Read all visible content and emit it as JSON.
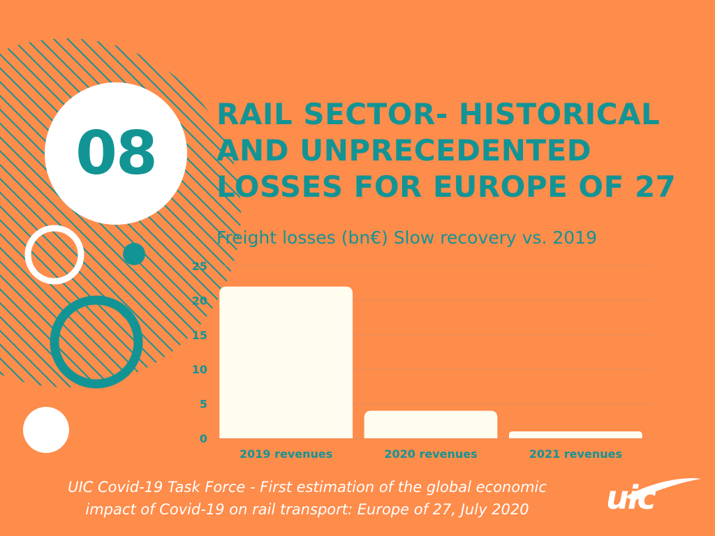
{
  "badge": {
    "number": "08"
  },
  "title": {
    "line1": "RAIL SECTOR- HISTORICAL",
    "line2": "AND UNPRECEDENTED",
    "line3": "LOSSES FOR EUROPE OF 27"
  },
  "footer": {
    "line1": "UIC Covid-19 Task Force - First estimation of the global economic",
    "line2": "impact of Covid-19 on rail transport: Europe of 27, July 2020"
  },
  "logo": {
    "text": "uic"
  },
  "colors": {
    "background": "#FE8C4B",
    "accent": "#139494",
    "bar": "#FFFCF0",
    "white": "#FFFFFF"
  },
  "chart_data": {
    "type": "bar",
    "title": "Freight losses (bn€) Slow recovery vs. 2019",
    "categories": [
      "2019 revenues",
      "2020 revenues",
      "2021 revenues"
    ],
    "values": [
      22,
      4,
      1
    ],
    "ylim": [
      0,
      25
    ],
    "yticks": [
      0,
      5,
      10,
      15,
      20,
      25
    ],
    "xlabel": "",
    "ylabel": "",
    "grid": true
  }
}
